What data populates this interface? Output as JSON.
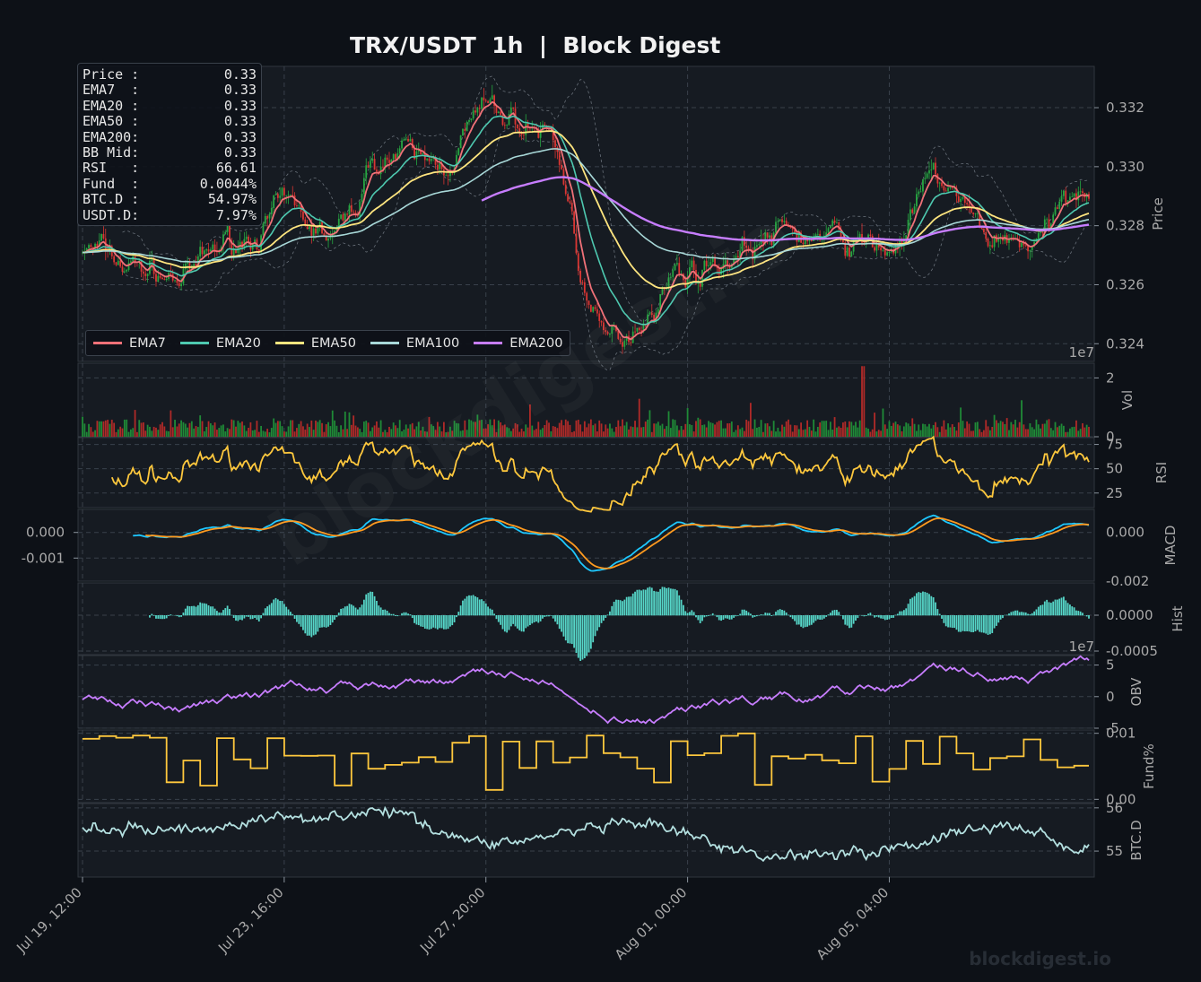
{
  "header": {
    "title": "TRX/USDT  1h  |  Block Digest"
  },
  "info_box": {
    "rows": [
      {
        "label": "Price :",
        "value": "0.33"
      },
      {
        "label": "EMA7  :",
        "value": "0.33"
      },
      {
        "label": "EMA20 :",
        "value": "0.33"
      },
      {
        "label": "EMA50 :",
        "value": "0.33"
      },
      {
        "label": "EMA200:",
        "value": "0.33"
      },
      {
        "label": "BB Mid:",
        "value": "0.33"
      },
      {
        "label": "RSI   :",
        "value": "66.61"
      },
      {
        "label": "Fund  :",
        "value": "0.0044%"
      },
      {
        "label": "BTC.D :",
        "value": "54.97%"
      },
      {
        "label": "USDT.D:",
        "value": "7.97%"
      }
    ]
  },
  "watermarks": {
    "corner": "blockdigest.io",
    "diagonal": "blockdigest.io"
  },
  "colors": {
    "background": "#0d1117",
    "panel": "#161b22",
    "grid": "#39414b",
    "up": "#26a641",
    "down": "#da3633",
    "ema7": "#f07178",
    "ema20": "#4ec9b0",
    "ema50": "#ffe57f",
    "ema100": "#a8d8d8",
    "ema200": "#c77dff",
    "rsi": "#ffc83d",
    "macd": "#1ec8ff",
    "signal": "#ff9a1f",
    "hist": "#56d6c8",
    "obv": "#c77dff",
    "fund": "#ffc83d",
    "btcd": "#b4e0e0"
  },
  "chart_data": {
    "type": "line",
    "x_ticks": [
      "Jul 19, 12:00",
      "Jul 23, 16:00",
      "Jul 27, 20:00",
      "Aug 01, 00:00",
      "Aug 05, 04:00"
    ],
    "legend": {
      "placement": "bottom-left",
      "entries": [
        "EMA7",
        "EMA20",
        "EMA50",
        "EMA100",
        "EMA200"
      ]
    },
    "panels": [
      {
        "id": "price",
        "ylabel": "Price",
        "ylim": [
          0.3234,
          0.3334
        ],
        "ticks": [
          "0.324",
          "0.326",
          "0.328",
          "0.330",
          "0.332"
        ],
        "series": [
          "candles",
          "EMA7",
          "EMA20",
          "EMA50",
          "EMA100",
          "EMA200",
          "Bollinger bands"
        ],
        "anchors_x": [
          0,
          0.05,
          0.1,
          0.15,
          0.2,
          0.25,
          0.3,
          0.35,
          0.4,
          0.46,
          0.52,
          0.6,
          0.7,
          0.8,
          0.85,
          0.9,
          0.95,
          1.0
        ],
        "anchors_y": [
          0.3272,
          0.3266,
          0.3262,
          0.3275,
          0.3284,
          0.3276,
          0.3305,
          0.33,
          0.3318,
          0.3312,
          0.324,
          0.3265,
          0.3277,
          0.3272,
          0.3295,
          0.3276,
          0.3275,
          0.3297
        ]
      },
      {
        "id": "volume",
        "ylabel": "Vol",
        "exponent": "1e7",
        "ylim": [
          0,
          2.5
        ],
        "ticks": [
          "0",
          "2"
        ]
      },
      {
        "id": "rsi",
        "ylabel": "RSI",
        "ylim": [
          10,
          82
        ],
        "ticks": [
          "25",
          "50",
          "75"
        ]
      },
      {
        "id": "macd",
        "ylabel": "MACD",
        "ylim": [
          -0.0019,
          0.0009
        ],
        "ticks": [
          "0.000",
          "-0.001"
        ],
        "right_ticks": [
          "0.000",
          "-0.002"
        ],
        "series": [
          "MACD",
          "Signal"
        ]
      },
      {
        "id": "hist",
        "ylabel": "Hist",
        "ylim": [
          -0.00055,
          0.00045
        ],
        "ticks": [
          "0.0000",
          "-0.0005"
        ]
      },
      {
        "id": "obv",
        "ylabel": "OBV",
        "exponent": "1e7",
        "ylim": [
          -5,
          6.5
        ],
        "ticks": [
          "5",
          "0",
          "-5"
        ]
      },
      {
        "id": "funding",
        "ylabel": "Fund%",
        "ylim": [
          -0.0005,
          0.0105
        ],
        "ticks": [
          "0.01",
          "0.00"
        ]
      },
      {
        "id": "btcd",
        "ylabel": "BTC.D",
        "ylim": [
          54.4,
          56.1
        ],
        "ticks": [
          "56",
          "55"
        ]
      }
    ]
  }
}
